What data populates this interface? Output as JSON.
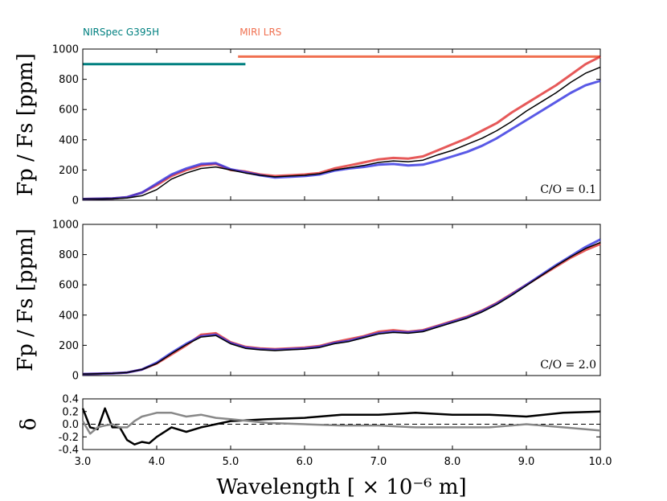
{
  "chart_data": {
    "type": "line",
    "xlabel": "Wavelength [ × 10⁻⁶ m]",
    "xlim": [
      3.0,
      10.0
    ],
    "x_ticks": [
      3.0,
      4.0,
      5.0,
      6.0,
      7.0,
      8.0,
      9.0,
      10.0
    ],
    "x_tick_labels": [
      "3.0",
      "4.0",
      "5.0",
      "6.0",
      "7.0",
      "8.0",
      "9.0",
      "10.0"
    ],
    "instruments": [
      {
        "name": "NIRSpec G395H",
        "range": [
          3.0,
          5.2
        ],
        "level": 900,
        "color": "#008080"
      },
      {
        "name": "MIRI LRS",
        "range": [
          5.1,
          10.0
        ],
        "level": 950,
        "color": "#f07050"
      }
    ],
    "panels": [
      {
        "id": "top",
        "annotation": "C/O = 0.1",
        "ylabel": "Fp / Fs [ppm]",
        "ylim": [
          0,
          1000
        ],
        "y_ticks": [
          0,
          200,
          400,
          600,
          800,
          1000
        ],
        "y_tick_labels": [
          "0",
          "200",
          "400",
          "600",
          "800",
          "1000"
        ],
        "x": [
          3.0,
          3.2,
          3.4,
          3.6,
          3.8,
          4.0,
          4.2,
          4.4,
          4.6,
          4.8,
          5.0,
          5.2,
          5.4,
          5.6,
          5.8,
          6.0,
          6.2,
          6.4,
          6.6,
          6.8,
          7.0,
          7.2,
          7.4,
          7.6,
          7.8,
          8.0,
          8.2,
          8.4,
          8.6,
          8.8,
          9.0,
          9.2,
          9.4,
          9.6,
          9.8,
          10.0
        ],
        "series": [
          {
            "name": "red model",
            "color": "#e03030",
            "values": [
              8,
              10,
              12,
              20,
              50,
              100,
              160,
              200,
              230,
              240,
              200,
              190,
              170,
              160,
              165,
              170,
              180,
              210,
              230,
              250,
              270,
              280,
              275,
              290,
              330,
              370,
              410,
              460,
              510,
              580,
              640,
              700,
              760,
              830,
              900,
              950
            ]
          },
          {
            "name": "blue model",
            "color": "#3030e0",
            "values": [
              8,
              10,
              12,
              20,
              50,
              110,
              170,
              210,
              240,
              245,
              205,
              185,
              165,
              150,
              155,
              160,
              170,
              195,
              210,
              220,
              235,
              240,
              230,
              235,
              260,
              290,
              320,
              360,
              410,
              470,
              530,
              590,
              650,
              710,
              760,
              790
            ]
          },
          {
            "name": "black model",
            "color": "#000000",
            "values": [
              8,
              8,
              10,
              15,
              30,
              70,
              140,
              180,
              210,
              220,
              200,
              180,
              165,
              155,
              160,
              165,
              175,
              200,
              215,
              230,
              250,
              260,
              255,
              265,
              300,
              330,
              370,
              410,
              460,
              520,
              590,
              650,
              710,
              780,
              840,
              880
            ]
          }
        ]
      },
      {
        "id": "middle",
        "annotation": "C/O = 2.0",
        "ylabel": "Fp / Fs [ppm]",
        "ylim": [
          0,
          1000
        ],
        "y_ticks": [
          0,
          200,
          400,
          600,
          800,
          1000
        ],
        "y_tick_labels": [
          "0",
          "200",
          "400",
          "600",
          "800",
          "1000"
        ],
        "x": [
          3.0,
          3.2,
          3.4,
          3.6,
          3.8,
          4.0,
          4.2,
          4.4,
          4.6,
          4.8,
          5.0,
          5.2,
          5.4,
          5.6,
          5.8,
          6.0,
          6.2,
          6.4,
          6.6,
          6.8,
          7.0,
          7.2,
          7.4,
          7.6,
          7.8,
          8.0,
          8.2,
          8.4,
          8.6,
          8.8,
          9.0,
          9.2,
          9.4,
          9.6,
          9.8,
          10.0
        ],
        "series": [
          {
            "name": "red model",
            "color": "#e03030",
            "values": [
              10,
              12,
              15,
              20,
              40,
              80,
              140,
              200,
              270,
              280,
              220,
              190,
              180,
              175,
              180,
              185,
              195,
              220,
              240,
              260,
              290,
              300,
              290,
              300,
              330,
              360,
              390,
              430,
              480,
              540,
              600,
              660,
              720,
              780,
              830,
              870
            ]
          },
          {
            "name": "blue model",
            "color": "#3030e0",
            "values": [
              10,
              12,
              15,
              20,
              40,
              85,
              150,
              210,
              260,
              270,
              215,
              185,
              175,
              170,
              175,
              180,
              190,
              215,
              230,
              255,
              280,
              290,
              285,
              295,
              325,
              355,
              385,
              425,
              475,
              535,
              600,
              665,
              730,
              790,
              850,
              900
            ]
          },
          {
            "name": "black model",
            "color": "#000000",
            "values": [
              10,
              12,
              15,
              20,
              40,
              80,
              145,
              205,
              255,
              265,
              210,
              180,
              170,
              165,
              170,
              175,
              185,
              210,
              225,
              250,
              275,
              285,
              280,
              290,
              320,
              350,
              380,
              420,
              470,
              530,
              595,
              660,
              725,
              785,
              840,
              880
            ]
          }
        ]
      },
      {
        "id": "residual",
        "ylabel": "δ",
        "ylim": [
          -0.4,
          0.4
        ],
        "y_ticks": [
          -0.4,
          -0.2,
          0.0,
          0.2,
          0.4
        ],
        "y_tick_labels": [
          "-0.4",
          "-0.2",
          "0.0",
          "0.2",
          "0.4"
        ],
        "reference_line": 0.0,
        "x": [
          3.0,
          3.1,
          3.2,
          3.3,
          3.4,
          3.5,
          3.6,
          3.7,
          3.8,
          3.9,
          4.0,
          4.2,
          4.4,
          4.6,
          4.8,
          5.0,
          5.5,
          6.0,
          6.5,
          7.0,
          7.5,
          8.0,
          8.5,
          9.0,
          9.5,
          10.0
        ],
        "series": [
          {
            "name": "black residual",
            "color": "#000000",
            "values": [
              0.25,
              -0.05,
              -0.08,
              0.25,
              -0.05,
              -0.05,
              -0.25,
              -0.32,
              -0.28,
              -0.3,
              -0.2,
              -0.05,
              -0.12,
              -0.05,
              0.0,
              0.05,
              0.08,
              0.1,
              0.15,
              0.15,
              0.18,
              0.15,
              0.15,
              0.12,
              0.18,
              0.2
            ]
          },
          {
            "name": "gray residual",
            "color": "#888888",
            "values": [
              0.05,
              -0.15,
              -0.05,
              -0.02,
              0.0,
              -0.05,
              -0.05,
              0.05,
              0.12,
              0.15,
              0.18,
              0.18,
              0.12,
              0.15,
              0.1,
              0.08,
              0.02,
              0.0,
              -0.02,
              -0.02,
              -0.05,
              -0.05,
              -0.05,
              0.0,
              -0.05,
              -0.1
            ]
          }
        ]
      }
    ]
  }
}
